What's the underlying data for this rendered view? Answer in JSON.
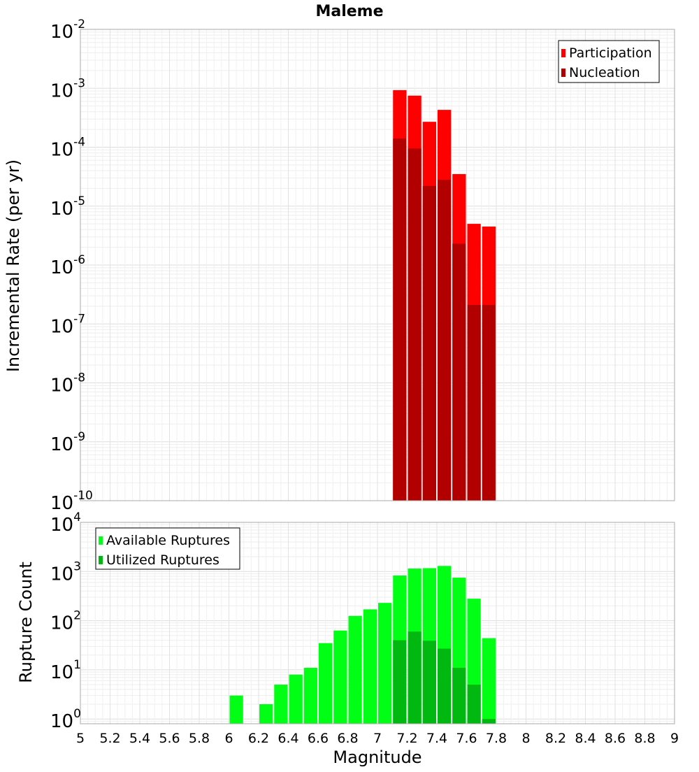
{
  "chart_data": [
    {
      "type": "bar",
      "title": "Maleme",
      "ylabel": "Incremental Rate (per yr)",
      "y_scale": "log",
      "ylim": [
        1e-10,
        0.01
      ],
      "xlim": [
        5,
        9
      ],
      "y_ticks": [
        {
          "base": "10",
          "exp": "-10",
          "value": 1e-10
        },
        {
          "base": "10",
          "exp": "-9",
          "value": 1e-09
        },
        {
          "base": "10",
          "exp": "-8",
          "value": 1e-08
        },
        {
          "base": "10",
          "exp": "-7",
          "value": 1e-07
        },
        {
          "base": "10",
          "exp": "-6",
          "value": 1e-06
        },
        {
          "base": "10",
          "exp": "-5",
          "value": 1e-05
        },
        {
          "base": "10",
          "exp": "-4",
          "value": 0.0001
        },
        {
          "base": "10",
          "exp": "-3",
          "value": 0.001
        },
        {
          "base": "10",
          "exp": "-2",
          "value": 0.01
        }
      ],
      "legend_position": "top-right",
      "grid": true,
      "bin_width": 0.1,
      "x": [
        7.15,
        7.25,
        7.35,
        7.45,
        7.55,
        7.65,
        7.75
      ],
      "series": [
        {
          "name": "Participation",
          "color": "#ff0000",
          "values": [
            0.00093,
            0.00075,
            0.00027,
            0.00043,
            3.5e-05,
            5e-06,
            4.5e-06
          ]
        },
        {
          "name": "Nucleation",
          "color": "#b20000",
          "values": [
            0.00014,
            9.5e-05,
            2.2e-05,
            2.8e-05,
            2.3e-06,
            2.1e-07,
            2.1e-07
          ]
        }
      ]
    },
    {
      "type": "bar",
      "xlabel": "Magnitude",
      "ylabel": "Rupture Count",
      "y_scale": "log",
      "ylim": [
        0.8,
        10000
      ],
      "xlim": [
        5,
        9
      ],
      "y_ticks": [
        {
          "base": "10",
          "exp": "0",
          "value": 1
        },
        {
          "base": "10",
          "exp": "1",
          "value": 10
        },
        {
          "base": "10",
          "exp": "2",
          "value": 100
        },
        {
          "base": "10",
          "exp": "3",
          "value": 1000
        },
        {
          "base": "10",
          "exp": "4",
          "value": 10000
        }
      ],
      "x_ticks": [
        "5",
        "5.2",
        "5.4",
        "5.6",
        "5.8",
        "6",
        "6.2",
        "6.4",
        "6.6",
        "6.8",
        "7",
        "7.2",
        "7.4",
        "7.6",
        "7.8",
        "8",
        "8.2",
        "8.4",
        "8.6",
        "8.8",
        "9"
      ],
      "legend_position": "top-left",
      "grid": true,
      "bin_width": 0.1,
      "series": [
        {
          "name": "Available Ruptures",
          "color": "#00ff15",
          "x": [
            6.05,
            6.25,
            6.35,
            6.45,
            6.55,
            6.65,
            6.75,
            6.85,
            6.95,
            7.05,
            7.15,
            7.25,
            7.35,
            7.45,
            7.55,
            7.65,
            7.75
          ],
          "values": [
            3,
            2,
            5,
            8,
            11,
            35,
            63,
            125,
            170,
            230,
            830,
            1150,
            1170,
            1300,
            750,
            280,
            44
          ]
        },
        {
          "name": "Utilized Ruptures",
          "color": "#00b810",
          "x": [
            7.15,
            7.25,
            7.35,
            7.45,
            7.55,
            7.65,
            7.75
          ],
          "values": [
            40,
            60,
            39,
            27,
            11,
            5,
            1
          ]
        }
      ]
    }
  ]
}
